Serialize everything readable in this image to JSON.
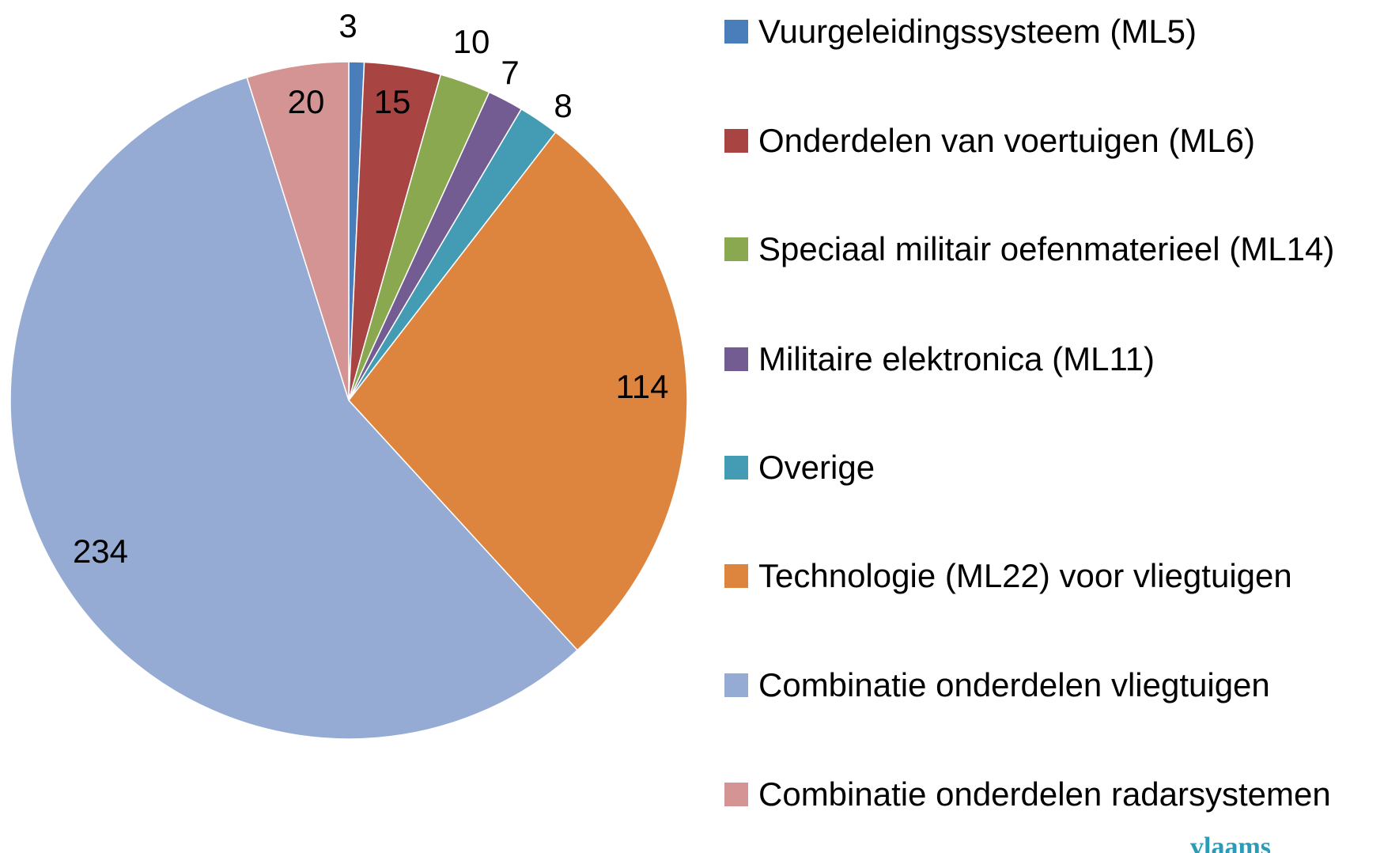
{
  "chart_data": {
    "type": "pie",
    "categories": [
      "Vuurgeleidingssysteem (ML5)",
      "Onderdelen van voertuigen (ML6)",
      "Speciaal militair oefenmaterieel (ML14)",
      "Militaire elektronica (ML11)",
      "Overige",
      "Technologie (ML22) voor vliegtuigen",
      "Combinatie onderdelen vliegtuigen",
      "Combinatie onderdelen radarsystemen"
    ],
    "values": [
      3,
      15,
      10,
      7,
      8,
      114,
      234,
      20
    ],
    "colors": [
      "#4a7ebb",
      "#a84543",
      "#8aa84f",
      "#725c92",
      "#439cb3",
      "#dd843f",
      "#95abd3",
      "#d39493"
    ],
    "legend": "right",
    "watermark": "vlaams"
  }
}
